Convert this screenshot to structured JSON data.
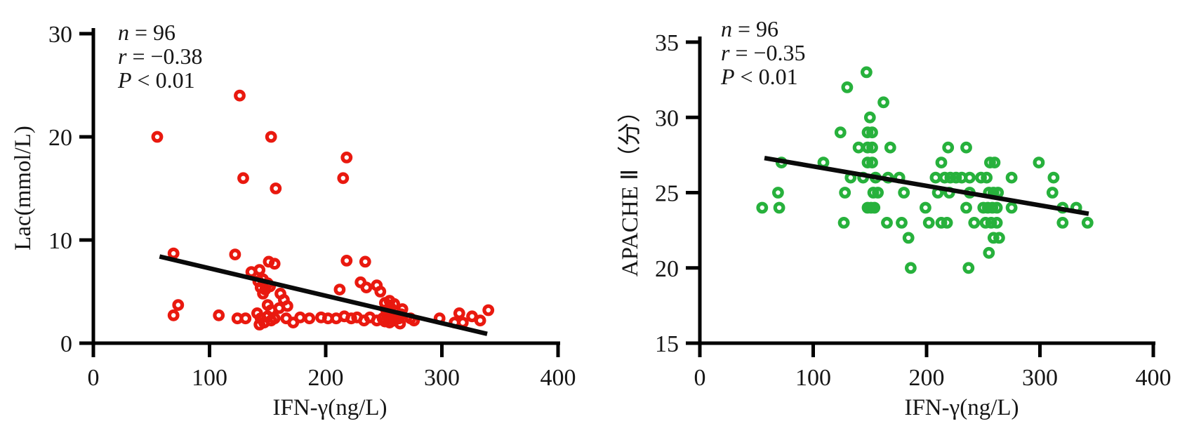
{
  "figure": {
    "background": "#ffffff"
  },
  "chart_data": [
    {
      "type": "scatter",
      "panel": "left",
      "title": "",
      "xlabel": "IFN-γ(ng/L)",
      "ylabel": "Lac(mmol/L)",
      "xlim": [
        0,
        400
      ],
      "ylim": [
        0,
        30
      ],
      "xticks": [
        0,
        100,
        200,
        300,
        400
      ],
      "yticks": [
        0,
        10,
        20,
        30
      ],
      "grid": false,
      "legend": "none",
      "marker": {
        "shape": "open-circle",
        "color": "#E9190F"
      },
      "trend_color": "#0a0a0a",
      "annotations": [
        {
          "var": "n",
          "rest": " = 96"
        },
        {
          "var": "r",
          "rest": " = −0.38"
        },
        {
          "var": "P",
          "rest": " < 0.01"
        }
      ],
      "trendline": {
        "x": [
          57,
          339
        ],
        "y": [
          8.4,
          0.9
        ]
      },
      "points": [
        [
          55,
          20
        ],
        [
          126,
          24
        ],
        [
          153,
          20
        ],
        [
          129,
          16
        ],
        [
          157,
          15
        ],
        [
          218,
          18
        ],
        [
          215,
          16
        ],
        [
          69,
          8.7
        ],
        [
          122,
          8.6
        ],
        [
          151,
          7.9
        ],
        [
          156,
          7.7
        ],
        [
          218,
          8
        ],
        [
          234,
          7.9
        ],
        [
          136,
          6.9
        ],
        [
          143,
          7.1
        ],
        [
          142,
          6
        ],
        [
          146,
          6.2
        ],
        [
          150,
          5.8
        ],
        [
          144,
          5.4
        ],
        [
          148,
          5.2
        ],
        [
          152,
          5.5
        ],
        [
          146,
          4.8
        ],
        [
          161,
          4.8
        ],
        [
          164,
          4.2
        ],
        [
          167,
          3.6
        ],
        [
          160,
          3.4
        ],
        [
          150,
          3.7
        ],
        [
          153,
          3.2
        ],
        [
          212,
          5.2
        ],
        [
          230,
          5.9
        ],
        [
          235,
          5.4
        ],
        [
          244,
          5.6
        ],
        [
          247,
          5
        ],
        [
          73,
          3.7
        ],
        [
          69,
          2.7
        ],
        [
          108,
          2.7
        ],
        [
          124,
          2.4
        ],
        [
          131,
          2.4
        ],
        [
          141,
          2.9
        ],
        [
          144,
          2.4
        ],
        [
          147,
          2
        ],
        [
          150,
          2.6
        ],
        [
          153,
          2.2
        ],
        [
          156,
          2.4
        ],
        [
          143,
          1.8
        ],
        [
          166,
          2.4
        ],
        [
          172,
          2
        ],
        [
          178,
          2.5
        ],
        [
          186,
          2.4
        ],
        [
          196,
          2.5
        ],
        [
          202,
          2.4
        ],
        [
          209,
          2.4
        ],
        [
          216,
          2.6
        ],
        [
          222,
          2.4
        ],
        [
          227,
          2.5
        ],
        [
          233,
          2.2
        ],
        [
          238,
          2.5
        ],
        [
          244,
          2.2
        ],
        [
          249,
          2.4
        ],
        [
          251,
          3.9
        ],
        [
          255,
          4.1
        ],
        [
          259,
          3.8
        ],
        [
          252,
          3.2
        ],
        [
          256,
          3.4
        ],
        [
          260,
          3.1
        ],
        [
          253,
          2.6
        ],
        [
          257,
          2.8
        ],
        [
          261,
          2.5
        ],
        [
          251,
          2.1
        ],
        [
          255,
          2
        ],
        [
          259,
          2.2
        ],
        [
          263,
          2.4
        ],
        [
          265,
          2.8
        ],
        [
          266,
          3.3
        ],
        [
          264,
          1.9
        ],
        [
          273,
          2.4
        ],
        [
          276,
          2.2
        ],
        [
          298,
          2.4
        ],
        [
          311,
          2
        ],
        [
          315,
          2.9
        ],
        [
          318,
          2
        ],
        [
          326,
          2.6
        ],
        [
          333,
          2.2
        ],
        [
          340,
          3.2
        ]
      ]
    },
    {
      "type": "scatter",
      "panel": "right",
      "title": "",
      "xlabel": "IFN-γ(ng/L)",
      "ylabel": "APACHE Ⅱ（分）",
      "xlim": [
        0,
        400
      ],
      "ylim": [
        15,
        35
      ],
      "xticks": [
        0,
        100,
        200,
        300,
        400
      ],
      "yticks": [
        15,
        20,
        25,
        30,
        35
      ],
      "grid": false,
      "legend": "none",
      "marker": {
        "shape": "open-circle",
        "color": "#27B13C"
      },
      "trend_color": "#0a0a0a",
      "annotations": [
        {
          "var": "n",
          "rest": " = 96"
        },
        {
          "var": "r",
          "rest": " = −0.35"
        },
        {
          "var": "P",
          "rest": " < 0.01"
        }
      ],
      "trendline": {
        "x": [
          57,
          343
        ],
        "y": [
          27.3,
          23.6
        ]
      },
      "points": [
        [
          147,
          33
        ],
        [
          130,
          32
        ],
        [
          162,
          31
        ],
        [
          150,
          30
        ],
        [
          124,
          29
        ],
        [
          148,
          29
        ],
        [
          152,
          29
        ],
        [
          140,
          28
        ],
        [
          148,
          28
        ],
        [
          152,
          28
        ],
        [
          168,
          28
        ],
        [
          219,
          28
        ],
        [
          235,
          28
        ],
        [
          72,
          27
        ],
        [
          109,
          27
        ],
        [
          148,
          27
        ],
        [
          152,
          27
        ],
        [
          213,
          27
        ],
        [
          256,
          27
        ],
        [
          260,
          27
        ],
        [
          299,
          27
        ],
        [
          133,
          26
        ],
        [
          144,
          26
        ],
        [
          155,
          26
        ],
        [
          166,
          26
        ],
        [
          176,
          26
        ],
        [
          208,
          26
        ],
        [
          216,
          26
        ],
        [
          221,
          26
        ],
        [
          226,
          26
        ],
        [
          231,
          26
        ],
        [
          238,
          26
        ],
        [
          248,
          26
        ],
        [
          253,
          26
        ],
        [
          275,
          26
        ],
        [
          312,
          26
        ],
        [
          69,
          25
        ],
        [
          128,
          25
        ],
        [
          153,
          25
        ],
        [
          157,
          25
        ],
        [
          180,
          25
        ],
        [
          210,
          25
        ],
        [
          220,
          25
        ],
        [
          238,
          25
        ],
        [
          255,
          25
        ],
        [
          259,
          25
        ],
        [
          263,
          25
        ],
        [
          311,
          25
        ],
        [
          55,
          24
        ],
        [
          70,
          24
        ],
        [
          148,
          24
        ],
        [
          151,
          24
        ],
        [
          154,
          24
        ],
        [
          199,
          24
        ],
        [
          235,
          24
        ],
        [
          250,
          24
        ],
        [
          254,
          24
        ],
        [
          258,
          24
        ],
        [
          262,
          24
        ],
        [
          275,
          24
        ],
        [
          320,
          24
        ],
        [
          332,
          24
        ],
        [
          127,
          23
        ],
        [
          165,
          23
        ],
        [
          178,
          23
        ],
        [
          202,
          23
        ],
        [
          213,
          23
        ],
        [
          218,
          23
        ],
        [
          242,
          23
        ],
        [
          252,
          23
        ],
        [
          257,
          23
        ],
        [
          262,
          23
        ],
        [
          320,
          23
        ],
        [
          342,
          23
        ],
        [
          184,
          22
        ],
        [
          259,
          22
        ],
        [
          264,
          22
        ],
        [
          255,
          21
        ],
        [
          186,
          20
        ],
        [
          237,
          20
        ]
      ]
    }
  ]
}
